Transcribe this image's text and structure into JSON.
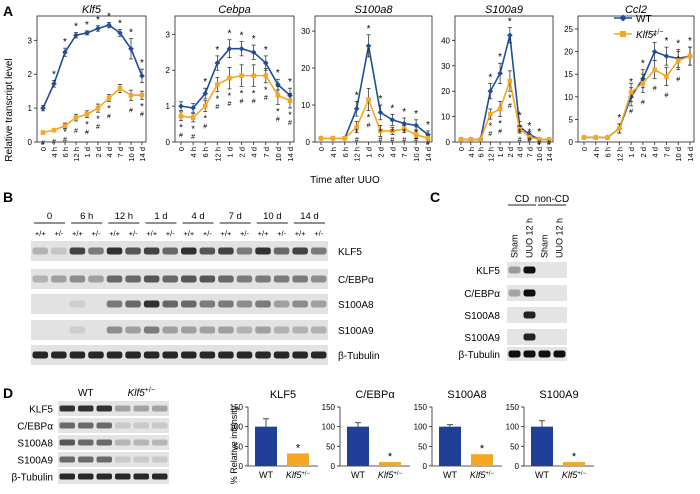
{
  "panel_letters": {
    "a": "A",
    "b": "B",
    "c": "C",
    "d": "D"
  },
  "panel_a": {
    "ylabel": "Relative transcript level",
    "xlabel": "Time after UUO",
    "legend": {
      "wt": "WT",
      "het_base": "Klf5",
      "het_sup": "+/−"
    },
    "colors": {
      "wt": "#1f4e99",
      "het": "#f5a623"
    },
    "timepoints": [
      "0",
      "4 h",
      "6 h",
      "12 h",
      "1 d",
      "2 d",
      "4 d",
      "7 d",
      "10 d",
      "14 d"
    ],
    "star": "*",
    "hash": "#"
  },
  "chart_data": [
    {
      "type": "line",
      "title": "Klf5",
      "ylim": [
        0,
        3.6
      ],
      "yticks": [
        0,
        1,
        2,
        3
      ],
      "x": [
        "0",
        "4 h",
        "6 h",
        "12 h",
        "1 d",
        "2 d",
        "4 d",
        "7 d",
        "10 d",
        "14 d"
      ],
      "series": [
        {
          "name": "WT",
          "values": [
            1.0,
            1.72,
            2.65,
            3.15,
            3.22,
            3.35,
            3.45,
            3.22,
            2.75,
            1.95
          ],
          "err": [
            0.08,
            0.1,
            0.12,
            0.08,
            0.06,
            0.08,
            0.08,
            0.1,
            0.3,
            0.2
          ]
        },
        {
          "name": "Klf5+/−",
          "values": [
            0.28,
            0.35,
            0.48,
            0.72,
            0.82,
            1.0,
            1.3,
            1.58,
            1.38,
            1.38
          ],
          "err": [
            0.05,
            0.05,
            0.08,
            0.1,
            0.1,
            0.12,
            0.1,
            0.12,
            0.15,
            0.12
          ]
        }
      ],
      "wt_stars": [
        0,
        1,
        1,
        1,
        1,
        1,
        1,
        1,
        1,
        1
      ],
      "het_marks": [
        1,
        1,
        2,
        1,
        2,
        2,
        2,
        0,
        1,
        2
      ]
    },
    {
      "type": "line",
      "title": "Cebpa",
      "ylim": [
        0,
        3.4
      ],
      "yticks": [
        0,
        1,
        2,
        3
      ],
      "x": [
        "0",
        "4 h",
        "6 h",
        "12 h",
        "1 d",
        "2 d",
        "4 d",
        "7 d",
        "10 d",
        "14 d"
      ],
      "series": [
        {
          "name": "WT",
          "values": [
            1.0,
            0.95,
            1.35,
            2.2,
            2.6,
            2.6,
            2.5,
            2.2,
            1.6,
            1.3
          ],
          "err": [
            0.12,
            0.12,
            0.15,
            0.2,
            0.25,
            0.2,
            0.2,
            0.2,
            0.15,
            0.2
          ]
        },
        {
          "name": "Klf5+/−",
          "values": [
            0.72,
            0.68,
            1.0,
            1.6,
            1.78,
            1.85,
            1.85,
            1.85,
            1.3,
            1.15
          ],
          "err": [
            0.12,
            0.12,
            0.15,
            0.2,
            0.3,
            0.3,
            0.3,
            0.2,
            0.25,
            0.2
          ]
        }
      ],
      "wt_stars": [
        0,
        0,
        1,
        1,
        1,
        1,
        1,
        1,
        1,
        1
      ],
      "het_marks": [
        2,
        2,
        2,
        2,
        2,
        2,
        2,
        2,
        2,
        2
      ]
    },
    {
      "type": "line",
      "title": "S100a8",
      "ylim": [
        0,
        33
      ],
      "yticks": [
        0,
        10,
        20,
        30
      ],
      "x": [
        "0",
        "4 h",
        "6 h",
        "12 h",
        "1 d",
        "2 d",
        "4 d",
        "7 d",
        "10 d",
        "14 d"
      ],
      "series": [
        {
          "name": "WT",
          "values": [
            1,
            1,
            1,
            9,
            26,
            8,
            6,
            5,
            4.5,
            2
          ],
          "err": [
            0.3,
            0.3,
            0.3,
            2,
            3,
            2,
            1.5,
            1.5,
            1.5,
            1
          ]
        },
        {
          "name": "Klf5+/−",
          "values": [
            1,
            1,
            1,
            4,
            11.5,
            3,
            3,
            3.5,
            2,
            1
          ],
          "err": [
            0.3,
            0.3,
            0.3,
            1.5,
            3,
            1.5,
            1,
            1,
            1,
            0.5
          ]
        }
      ],
      "wt_stars": [
        0,
        0,
        0,
        1,
        1,
        1,
        1,
        1,
        1,
        1
      ],
      "het_marks": [
        0,
        0,
        0,
        2,
        2,
        2,
        2,
        2,
        2,
        1
      ]
    },
    {
      "type": "line",
      "title": "S100a9",
      "ylim": [
        0,
        48
      ],
      "yticks": [
        0,
        10,
        20,
        30,
        40
      ],
      "x": [
        "0",
        "4 h",
        "6 h",
        "12 h",
        "1 d",
        "2 d",
        "4 d",
        "7 d",
        "10 d",
        "14 d"
      ],
      "series": [
        {
          "name": "WT",
          "values": [
            1,
            1,
            1,
            20,
            27,
            42,
            6,
            3,
            1,
            1
          ],
          "err": [
            0.3,
            0.3,
            0.3,
            3,
            4,
            3,
            2,
            1,
            0.5,
            0.5
          ]
        },
        {
          "name": "Klf5+/−",
          "values": [
            1,
            1,
            1,
            11,
            13,
            24,
            5,
            2,
            1,
            1
          ],
          "err": [
            0.3,
            0.3,
            0.3,
            2,
            3,
            4,
            1.5,
            1,
            0.5,
            0.5
          ]
        }
      ],
      "wt_stars": [
        0,
        0,
        0,
        1,
        1,
        1,
        1,
        1,
        1,
        0
      ],
      "het_marks": [
        0,
        0,
        0,
        2,
        2,
        2,
        2,
        2,
        1,
        1
      ]
    },
    {
      "type": "line",
      "title": "Ccl2",
      "ylim": [
        0,
        27
      ],
      "yticks": [
        0,
        5,
        10,
        15,
        20,
        25
      ],
      "x": [
        "0",
        "4 h",
        "6 h",
        "12 h",
        "1 d",
        "2 d",
        "4 d",
        "7 d",
        "10 d",
        "14 d"
      ],
      "series": [
        {
          "name": "WT",
          "values": [
            1,
            1,
            1,
            3,
            10,
            14,
            20,
            19,
            18.5,
            19
          ],
          "err": [
            0.3,
            0.3,
            0.3,
            1,
            2,
            2,
            2,
            2,
            2,
            2
          ]
        },
        {
          "name": "Klf5+/−",
          "values": [
            1,
            1,
            1,
            3,
            11,
            13,
            16,
            14.5,
            18,
            19
          ],
          "err": [
            0.3,
            0.3,
            0.3,
            1,
            2,
            2,
            2,
            2,
            2,
            2
          ]
        }
      ],
      "wt_stars": [
        0,
        0,
        0,
        1,
        1,
        1,
        1,
        1,
        1,
        1
      ],
      "het_marks": [
        0,
        0,
        0,
        0,
        1,
        1,
        1,
        1,
        1,
        0
      ]
    },
    {
      "type": "bar",
      "title": "KLF5",
      "categories": [
        "WT",
        "Klf5+/−"
      ],
      "values": [
        100,
        32
      ],
      "err": [
        20,
        0
      ],
      "ylim": [
        0,
        150
      ],
      "star": [
        false,
        true
      ]
    },
    {
      "type": "bar",
      "title": "C/EBPα",
      "categories": [
        "WT",
        "Klf5+/−"
      ],
      "values": [
        100,
        10
      ],
      "err": [
        10,
        0
      ],
      "ylim": [
        0,
        150
      ],
      "star": [
        false,
        true
      ]
    },
    {
      "type": "bar",
      "title": "S100A8",
      "categories": [
        "WT",
        "Klf5+/−"
      ],
      "values": [
        100,
        30
      ],
      "err": [
        5,
        0
      ],
      "ylim": [
        0,
        150
      ],
      "star": [
        false,
        true
      ]
    },
    {
      "type": "bar",
      "title": "S100A9",
      "categories": [
        "WT",
        "Klf5+/−"
      ],
      "values": [
        100,
        10
      ],
      "err": [
        15,
        0
      ],
      "ylim": [
        0,
        150
      ],
      "star": [
        false,
        true
      ]
    }
  ],
  "panel_b": {
    "timepoints": [
      "0",
      "6 h",
      "12 h",
      "1 d",
      "4 d",
      "7 d",
      "10 d",
      "14 d"
    ],
    "genotypes": [
      "+/+",
      "+/-",
      "+/+",
      "+/-",
      "+/+",
      "+/-",
      "+/+",
      "+/-",
      "+/+",
      "+/-",
      "+/+",
      "+/-",
      "+/+",
      "+/-",
      "+/+",
      "+/-"
    ],
    "rows": [
      {
        "label": "KLF5",
        "bands": [
          0.2,
          0.1,
          0.8,
          0.5,
          0.9,
          0.7,
          0.8,
          0.6,
          0.9,
          0.7,
          0.8,
          0.5,
          0.9,
          0.6,
          0.8,
          0.5
        ]
      },
      {
        "label": "C/EBPα",
        "bands": [
          0.2,
          0.3,
          0.4,
          0.3,
          0.6,
          0.6,
          0.7,
          0.6,
          0.7,
          0.7,
          0.6,
          0.5,
          0.5,
          0.5,
          0.5,
          0.4
        ]
      },
      {
        "label": "S100A8",
        "bands": [
          0.0,
          0.0,
          0.05,
          0.0,
          0.5,
          0.6,
          0.9,
          0.6,
          0.6,
          0.5,
          0.5,
          0.4,
          0.5,
          0.3,
          0.4,
          0.3
        ]
      },
      {
        "label": "S100A9",
        "bands": [
          0.0,
          0.0,
          0.05,
          0.0,
          0.4,
          0.3,
          0.5,
          0.3,
          0.3,
          0.3,
          0.3,
          0.2,
          0.3,
          0.2,
          0.2,
          0.2
        ]
      },
      {
        "label": "β-Tubulin",
        "bands": [
          0.95,
          0.95,
          0.95,
          0.95,
          0.95,
          0.95,
          0.95,
          0.95,
          0.95,
          0.95,
          0.95,
          0.95,
          0.95,
          0.95,
          0.95,
          0.95
        ]
      }
    ]
  },
  "panel_c": {
    "groups": [
      "CD",
      "non-CD"
    ],
    "lanes": [
      "Sham",
      "UUO 12 h",
      "Sham",
      "UUO 12 h"
    ],
    "rows": [
      {
        "label": "KLF5",
        "bands": [
          0.3,
          1.0,
          0,
          0
        ]
      },
      {
        "label": "C/EBPα",
        "bands": [
          0.25,
          1.0,
          0,
          0
        ]
      },
      {
        "label": "S100A8",
        "bands": [
          0,
          0.9,
          0,
          0
        ]
      },
      {
        "label": "S100A9",
        "bands": [
          0,
          0.9,
          0,
          0
        ]
      },
      {
        "label": "β-Tubulin",
        "bands": [
          1.0,
          1.0,
          1.0,
          1.0
        ]
      }
    ]
  },
  "panel_d": {
    "wt_label": "WT",
    "het_label": "Klf5",
    "het_sup": "+/−",
    "ylabel": "% Relative intensity",
    "yticks": [
      0,
      50,
      100,
      150
    ],
    "rows": [
      {
        "label": "KLF5",
        "bands": [
          0.9,
          0.9,
          0.9,
          0.3,
          0.3,
          0.3
        ]
      },
      {
        "label": "C/EBPα",
        "bands": [
          0.6,
          0.6,
          0.6,
          0.1,
          0.1,
          0.1
        ]
      },
      {
        "label": "S100A8",
        "bands": [
          0.7,
          0.6,
          0.6,
          0.2,
          0.2,
          0.2
        ]
      },
      {
        "label": "S100A9",
        "bands": [
          0.6,
          0.6,
          0.6,
          0.1,
          0.1,
          0.1
        ]
      },
      {
        "label": "β-Tubulin",
        "bands": [
          0.95,
          0.95,
          0.95,
          0.95,
          0.95,
          0.95
        ]
      }
    ],
    "bar_colors": {
      "wt": "#1f3f99",
      "het": "#f5a623"
    }
  }
}
